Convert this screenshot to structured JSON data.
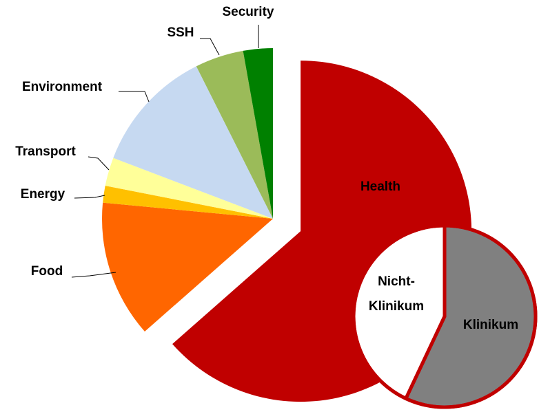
{
  "chart_data": [
    {
      "type": "pie",
      "categories": [
        "Health",
        "Food",
        "Energy",
        "Transport",
        "Environment",
        "SSH",
        "Security"
      ],
      "values": [
        63.5,
        13,
        1.6,
        2.7,
        11.8,
        4.6,
        2.8
      ],
      "colors": [
        "#c00000",
        "#ff6600",
        "#ffc000",
        "#ffff99",
        "#c6d9f1",
        "#9bbb59",
        "#008000"
      ]
    },
    {
      "type": "pie",
      "categories": [
        "Klinikum",
        "Nicht-Klinikum"
      ],
      "values": [
        57,
        43
      ],
      "colors": [
        "#808080",
        "#ffffff"
      ],
      "border_color": "#c00000"
    }
  ]
}
